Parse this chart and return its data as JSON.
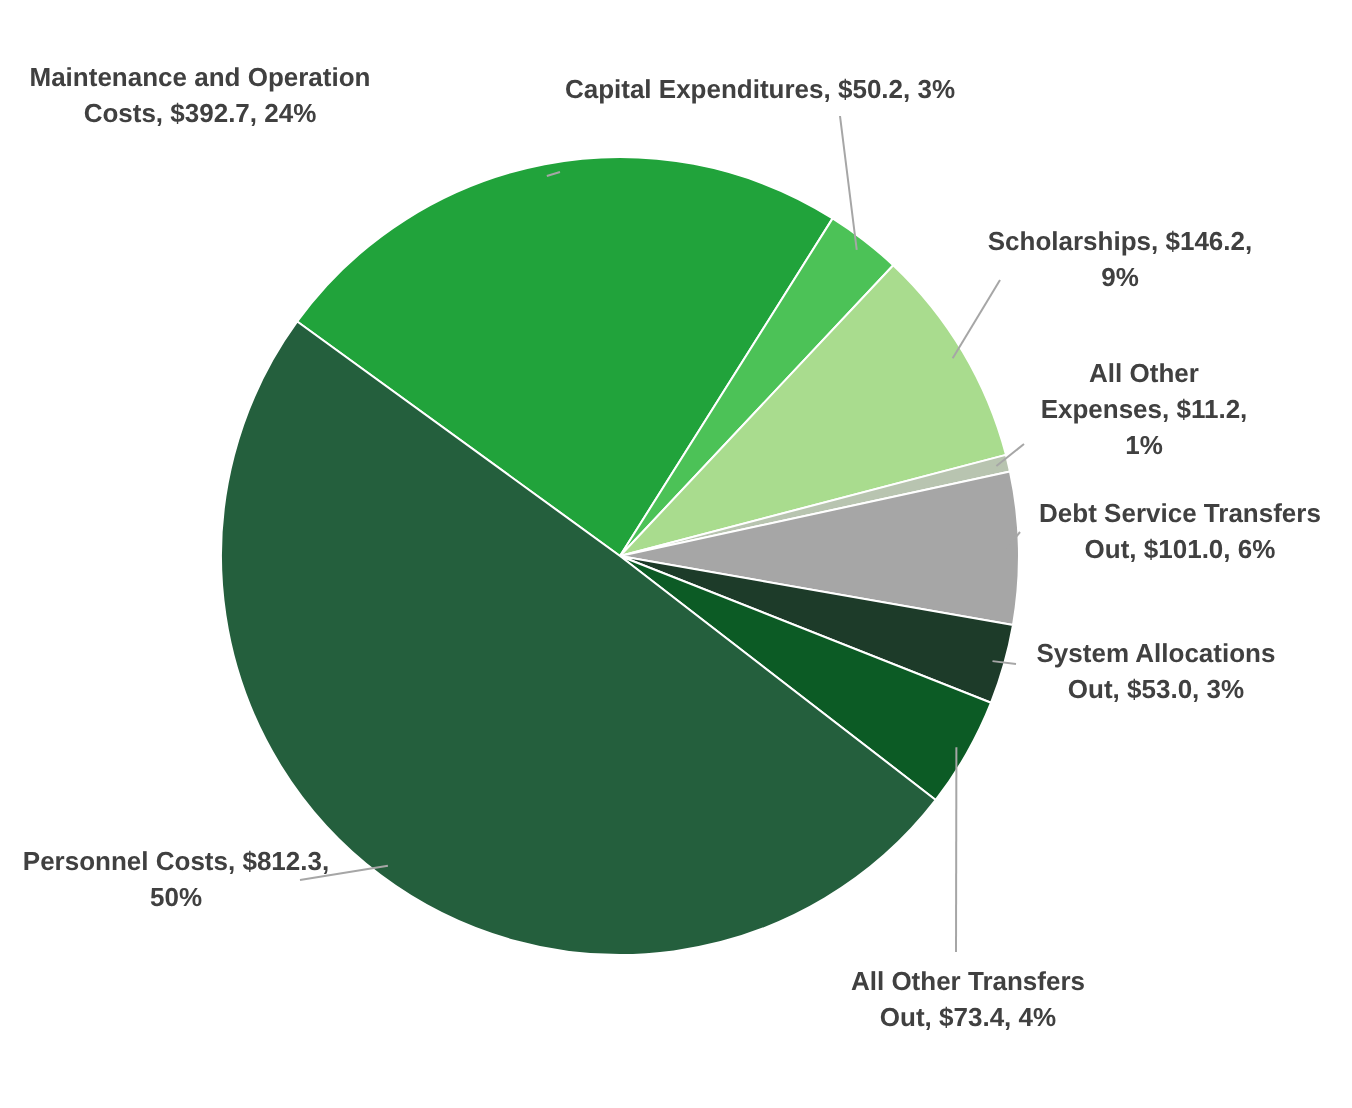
{
  "chart_data": {
    "type": "pie",
    "categories": [
      "Maintenance and Operation Costs",
      "Capital Expenditures",
      "Scholarships",
      "All Other Expenses",
      "Debt Service Transfers Out",
      "System Allocations Out",
      "All Other Transfers Out",
      "Personnel Costs"
    ],
    "values": [
      392.7,
      50.2,
      146.2,
      11.2,
      101.0,
      53.0,
      73.4,
      812.3
    ],
    "value_labels": [
      "$392.7, 24%",
      "$50.2, 3%",
      "$146.2, 9%",
      "$11.2, 1%",
      "$101.0, 6%",
      "$53.0, 3%",
      "$73.4, 4%",
      "$812.3, 50%"
    ],
    "colors": [
      "#21a33b",
      "#4cc257",
      "#a9dc8e",
      "#b8c4b0",
      "#a6a6a6",
      "#1d3b29",
      "#0c5b25",
      "#245f3d"
    ],
    "legend": false
  }
}
